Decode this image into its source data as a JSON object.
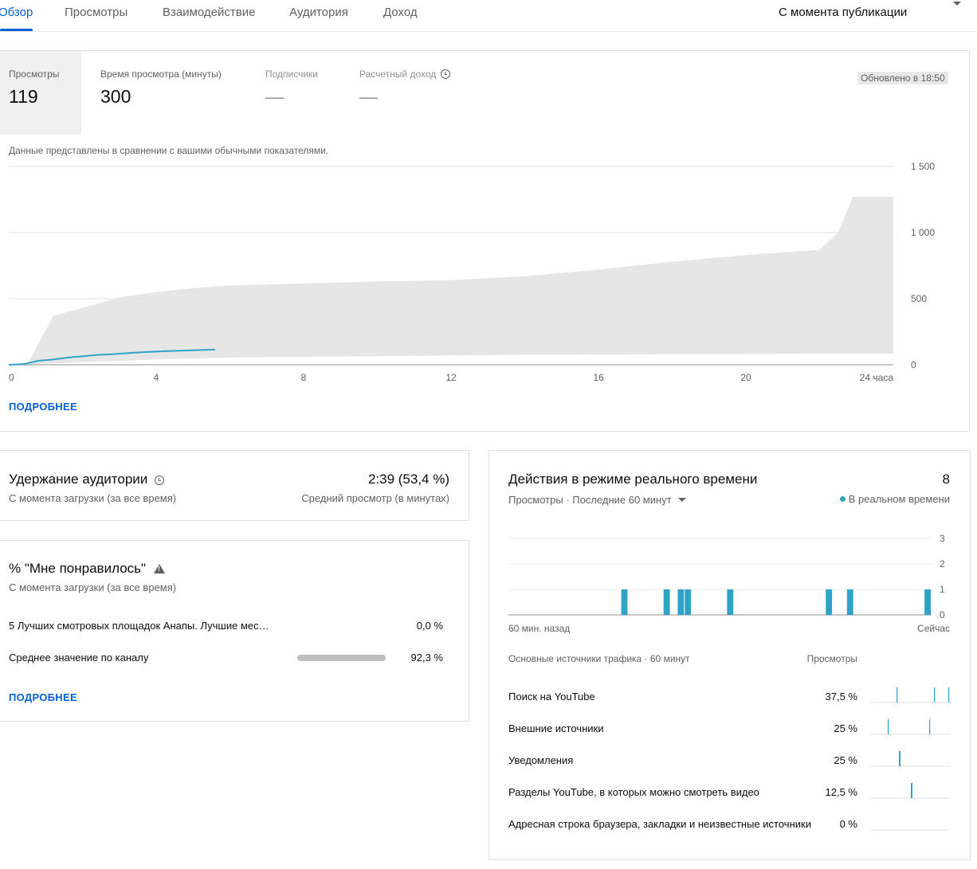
{
  "tabs": [
    {
      "label": "Обзор",
      "active": true
    },
    {
      "label": "Просмотры",
      "active": false
    },
    {
      "label": "Взаимодействие",
      "active": false
    },
    {
      "label": "Аудитория",
      "active": false
    },
    {
      "label": "Доход",
      "active": false
    }
  ],
  "period_selector": {
    "value": "С момента публикации"
  },
  "metrics": [
    {
      "label": "Просмотры",
      "value": "119",
      "selected": true
    },
    {
      "label": "Время просмотра (минуты)",
      "value": "300",
      "selected": false
    },
    {
      "label": "Подписчики",
      "value": "—",
      "selected": false
    },
    {
      "label": "Расчетный доход",
      "value": "—",
      "selected": false,
      "icon": "clock-icon"
    }
  ],
  "updated_badge": "Обновлено в 18:50",
  "compare_note": "Данные представлены в сравнении с вашими обычными показателями.",
  "main_more_link": "ПОДРОБНЕЕ",
  "chart_data": [
    {
      "type": "area",
      "title": "",
      "x_unit": "hours",
      "xlim": [
        0,
        24
      ],
      "ylim": [
        0,
        1500
      ],
      "x_tick_labels": [
        "0",
        "4",
        "8",
        "12",
        "16",
        "20",
        "24 часа"
      ],
      "x_ticks": [
        0,
        4,
        8,
        12,
        16,
        20,
        24
      ],
      "y_tick_labels": [
        "0",
        "500",
        "1 000",
        "1 500"
      ],
      "y_ticks": [
        0,
        500,
        1000,
        1500
      ],
      "grid": true,
      "typical_range": {
        "x": [
          0.5,
          1.2,
          2,
          3,
          4,
          5,
          6,
          8,
          10,
          12,
          14,
          16,
          18,
          20,
          22,
          22.5,
          22.9,
          24
        ],
        "upper": [
          0,
          370,
          430,
          510,
          550,
          580,
          600,
          615,
          630,
          640,
          670,
          720,
          780,
          830,
          870,
          1000,
          1270,
          1270
        ],
        "lower": [
          0,
          10,
          20,
          30,
          40,
          48,
          55,
          60,
          65,
          70,
          75,
          78,
          80,
          82,
          85,
          85,
          85,
          85
        ]
      },
      "series": [
        {
          "color": "#2ea3c7",
          "x": [
            0,
            0.4,
            0.8,
            1.2,
            1.6,
            2,
            2.4,
            2.8,
            3.2,
            3.6,
            4,
            4.4,
            4.8,
            5.2,
            5.6
          ],
          "y": [
            0,
            5,
            30,
            40,
            55,
            65,
            75,
            80,
            88,
            95,
            100,
            105,
            108,
            112,
            115
          ]
        }
      ]
    },
    {
      "type": "bar",
      "title": "",
      "x_tick_labels": [
        "60 мин. назад",
        "Сейчас"
      ],
      "y_tick_labels": [
        "0",
        "1",
        "2",
        "3"
      ],
      "ylim": [
        0,
        3
      ],
      "grid": true,
      "minute_bins": 60,
      "bars": [
        {
          "minutes_ago": 44,
          "value": 1
        },
        {
          "minutes_ago": 38,
          "value": 1
        },
        {
          "minutes_ago": 36,
          "value": 1
        },
        {
          "minutes_ago": 35,
          "value": 1
        },
        {
          "minutes_ago": 29,
          "value": 1
        },
        {
          "minutes_ago": 15,
          "value": 1
        },
        {
          "minutes_ago": 12,
          "value": 1
        },
        {
          "minutes_ago": 1,
          "value": 1
        }
      ],
      "color": "#2ea3c7"
    }
  ],
  "retention": {
    "title": "Удержание аудитории",
    "title_icon": "clock-icon",
    "subtitle": "С момента загрузки (за все время)",
    "value": "2:39 (53,4 %)",
    "value_caption": "Средний просмотр (в минутах)"
  },
  "likes": {
    "title": "% \"Мне понравилось\"",
    "title_icon": "warning-icon",
    "subtitle": "С момента загрузки (за все время)",
    "rows": [
      {
        "label": "5 Лучших смотровых площадок Анапы. Лучшие мес…",
        "value": "0,0 %",
        "fraction": 0.0
      },
      {
        "label": "Среднее значение по каналу",
        "value": "92,3 %",
        "fraction": 0.923
      }
    ],
    "more_link": "ПОДРОБНЕЕ"
  },
  "realtime": {
    "title": "Действия в режиме реального времени",
    "count": "8",
    "subtitle": "Просмотры · Последние 60 минут",
    "legend": "В реальном времени",
    "sources_header": "Основные источники трафика · 60 минут",
    "views_header": "Просмотры",
    "sources": [
      {
        "label": "Поиск на YouTube",
        "value": "37,5 %",
        "spikes": [
          33,
          80,
          98
        ],
        "colors": [
          "#2ea3c7",
          "#2ea3c7",
          "#2ea3c7"
        ]
      },
      {
        "label": "Внешние источники",
        "value": "25 %",
        "spikes": [
          22,
          74
        ],
        "colors": [
          "#2ea3c7",
          "#2ea3c7"
        ]
      },
      {
        "label": "Уведомления",
        "value": "25 %",
        "spikes": [
          36
        ],
        "colors": [
          "#2ea3c7"
        ]
      },
      {
        "label": "Разделы YouTube, в которых можно смотреть видео",
        "value": "12,5 %",
        "spikes": [
          51
        ],
        "colors": [
          "#2ea3c7"
        ]
      },
      {
        "label": "Адресная строка браузера, закладки и неизвестные источники",
        "value": "0 %",
        "spikes": [],
        "colors": []
      }
    ]
  }
}
